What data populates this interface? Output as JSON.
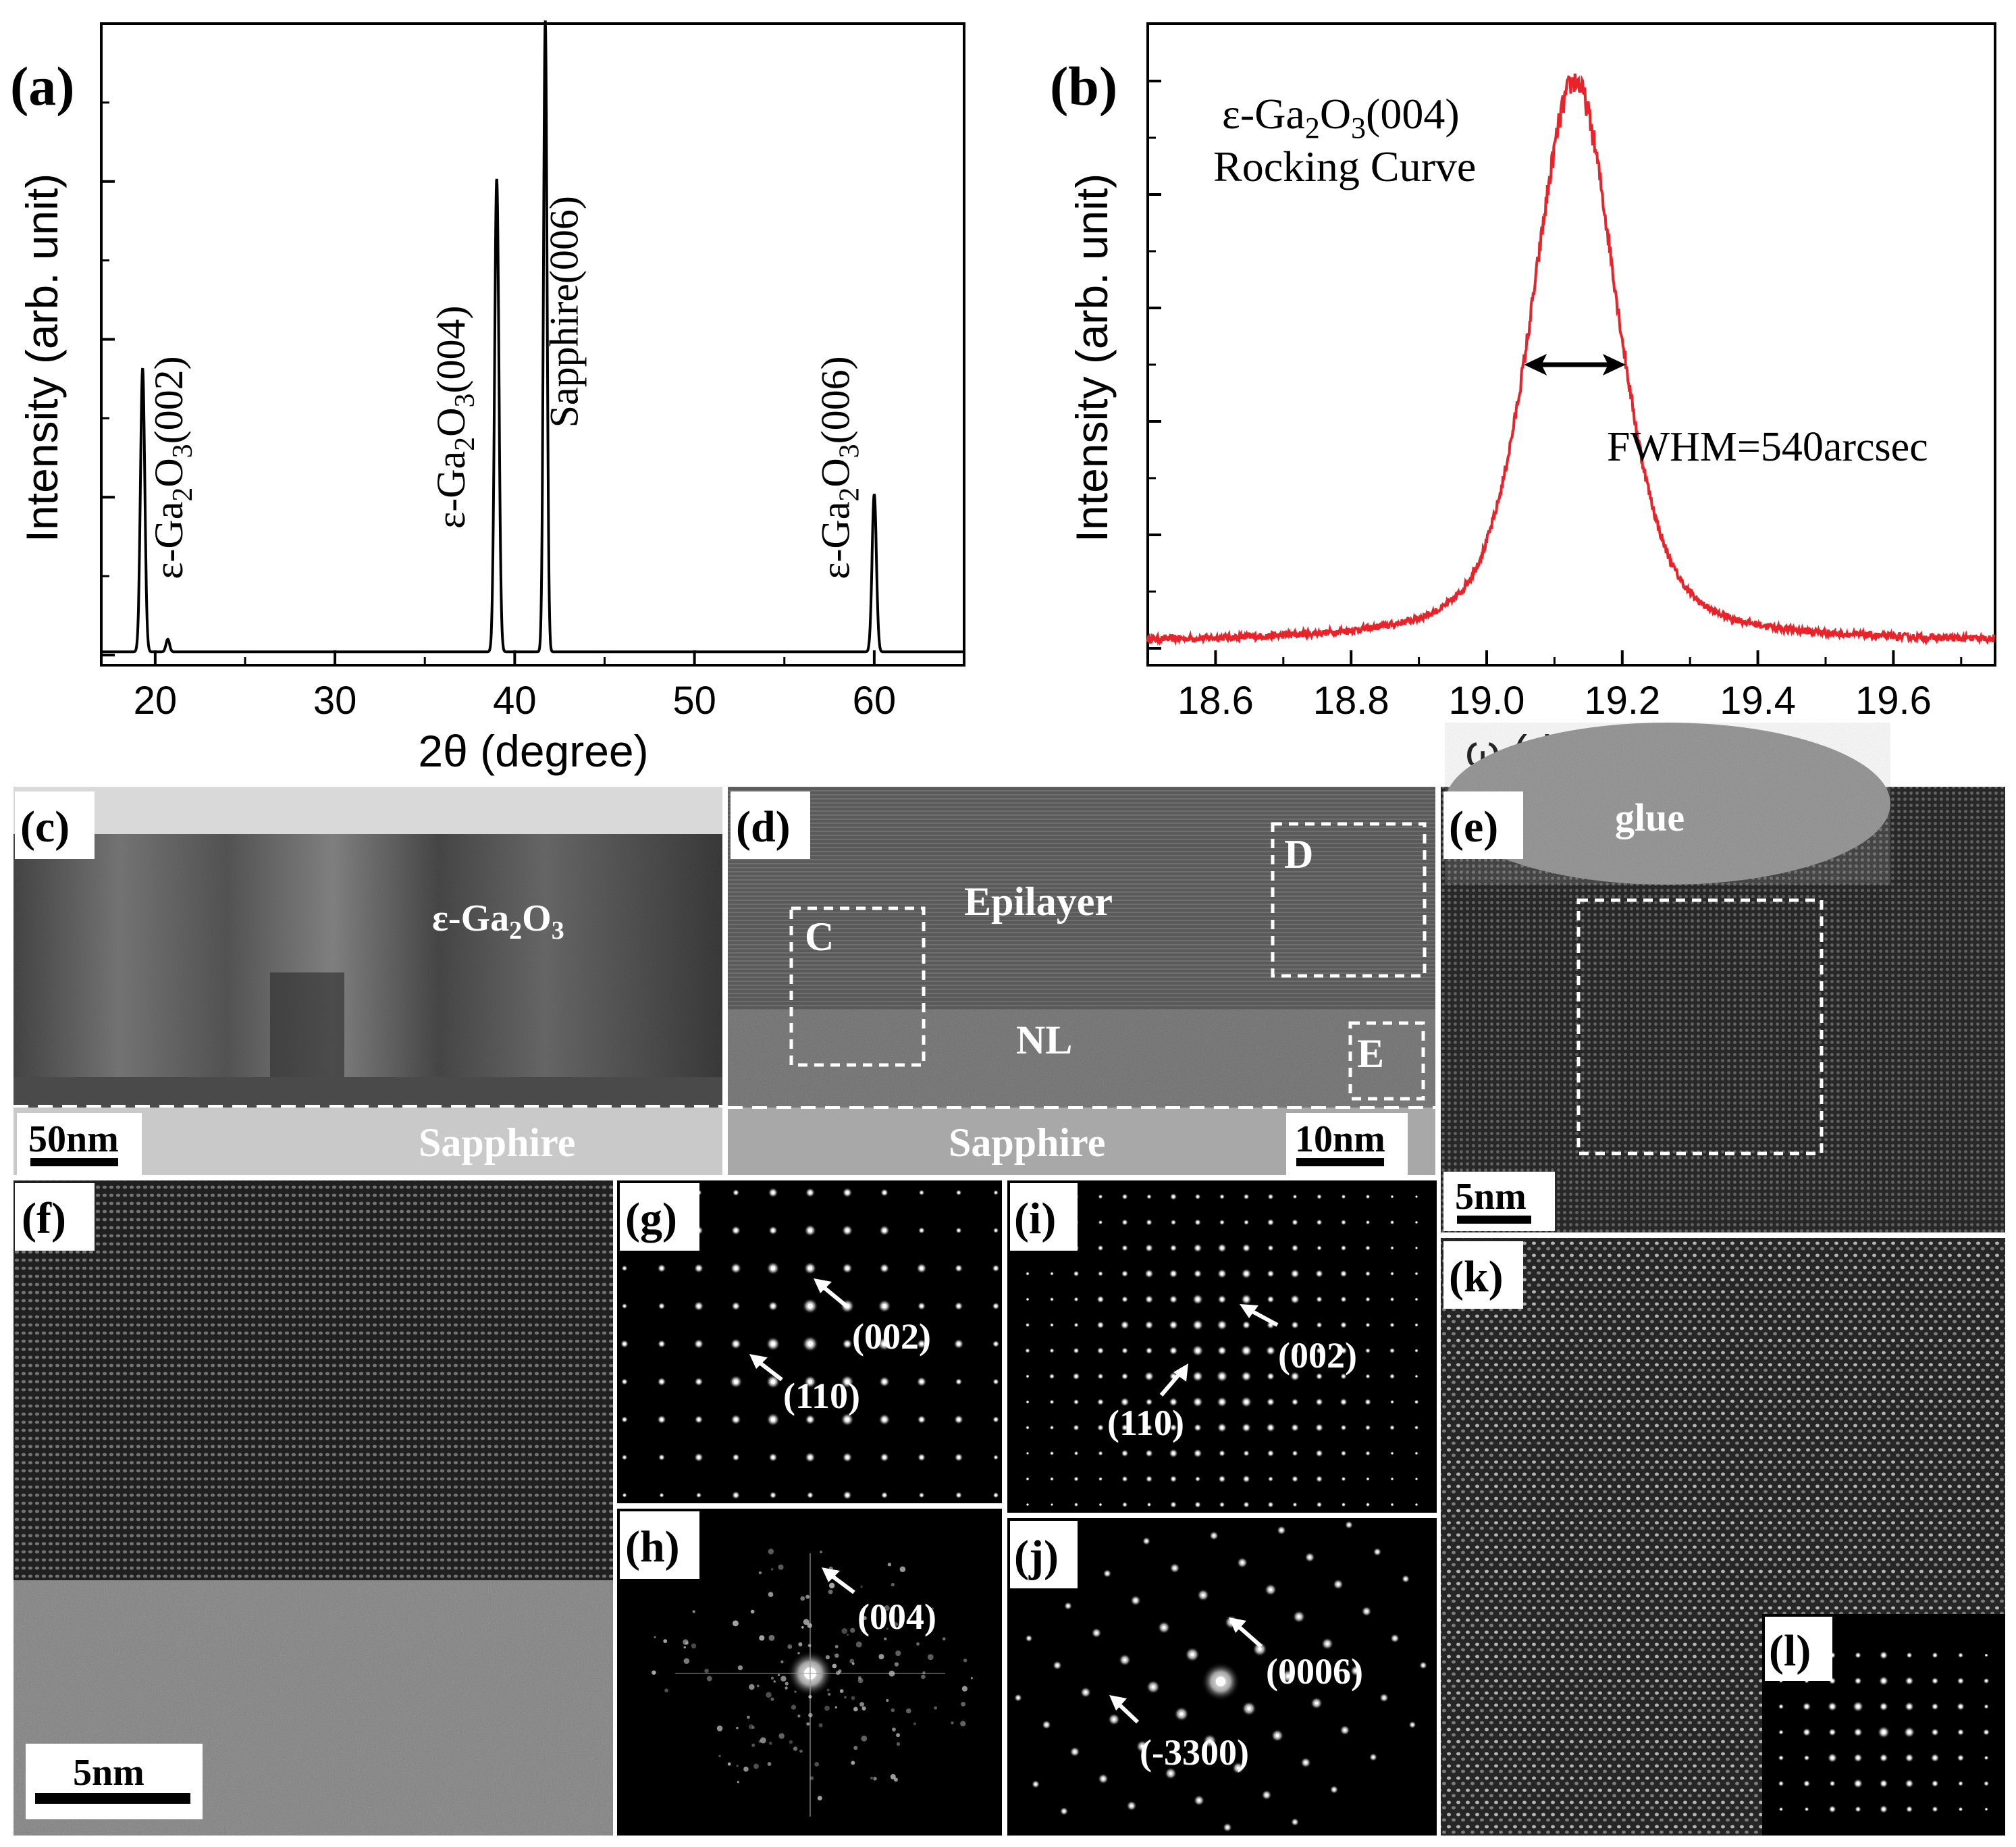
{
  "panels": {
    "a": {
      "label": "(a)"
    },
    "b": {
      "label": "(b)"
    },
    "c": {
      "label": "(c)",
      "material": "ε-Ga",
      "material_sub1": "2",
      "material_mid": "O",
      "material_sub2": "3",
      "substrate": "Sapphire",
      "scalebar": "50nm"
    },
    "d": {
      "label": "(d)",
      "epilayer": "Epilayer",
      "nl": "NL",
      "box_c": "C",
      "box_d": "D",
      "box_e": "E",
      "substrate": "Sapphire",
      "scalebar": "10nm"
    },
    "e": {
      "label": "(e)",
      "glue": "glue",
      "scalebar": "5nm"
    },
    "f": {
      "label": "(f)",
      "scalebar": "5nm"
    },
    "g": {
      "label": "(g)",
      "spot1": "(002)",
      "spot2": "(110)"
    },
    "h": {
      "label": "(h)",
      "spot1": "(004)"
    },
    "i": {
      "label": "(i)",
      "spot1": "(002)",
      "spot2": "(110)"
    },
    "j": {
      "label": "(j)",
      "spot1": "(0006)",
      "spot2": "(-3300)"
    },
    "k": {
      "label": "(k)"
    },
    "l": {
      "label": "(l)"
    }
  },
  "chart_data": [
    {
      "type": "line",
      "panel": "a",
      "xlabel": "2θ (degree)",
      "ylabel": "Intensity (arb. unit)",
      "xlim": [
        17,
        65
      ],
      "ylim": [
        0,
        100
      ],
      "xticks": [
        20,
        30,
        40,
        50,
        60
      ],
      "yticks": [
        0,
        25,
        50,
        75,
        100
      ],
      "series": [
        {
          "color": "#000000",
          "peaks": [
            {
              "center": 19.3,
              "height": 45,
              "width": 0.12
            },
            {
              "center": 20.7,
              "height": 2,
              "width": 0.1
            },
            {
              "center": 39.0,
              "height": 75,
              "width": 0.12
            },
            {
              "center": 41.7,
              "height": 100,
              "width": 0.1
            },
            {
              "center": 60.0,
              "height": 25,
              "width": 0.12
            }
          ],
          "baseline": 0.5
        }
      ],
      "annotations": [
        {
          "text": "ε-Ga",
          "sub1": "2",
          "mid": "O",
          "sub2": "3",
          "tail": "(002)",
          "x": 21.5,
          "y": 12
        },
        {
          "text": "ε-Ga",
          "sub1": "2",
          "mid": "O",
          "sub2": "3",
          "tail": "(004)",
          "x": 37.2,
          "y": 20
        },
        {
          "text": "Sapphire(006)",
          "x": 43.5,
          "y": 36
        },
        {
          "text": "ε-Ga",
          "sub1": "2",
          "mid": "O",
          "sub2": "3",
          "tail": "(006)",
          "x": 58.6,
          "y": 12
        }
      ]
    },
    {
      "type": "line",
      "panel": "b",
      "xlabel": "ω (degree)",
      "ylabel": "Intensity (arb. unit)",
      "xlim": [
        18.5,
        19.75
      ],
      "ylim": [
        0,
        100
      ],
      "xticks": [
        18.6,
        18.8,
        19.0,
        19.2,
        19.4,
        19.6
      ],
      "series": [
        {
          "color": "#e8242a",
          "peak_center": 19.13,
          "peak_height": 100,
          "fwhm_deg": 0.15,
          "baseline": 1
        }
      ],
      "annotations": [
        {
          "text": "ε-Ga",
          "sub1": "2",
          "mid": "O",
          "sub2": "3",
          "tail": "(004)"
        },
        {
          "text": "Rocking Curve"
        },
        {
          "text": "FWHM=540arcsec"
        }
      ],
      "fwhm_arrow": {
        "x1": 19.055,
        "x2": 19.205,
        "y": 50
      }
    }
  ]
}
